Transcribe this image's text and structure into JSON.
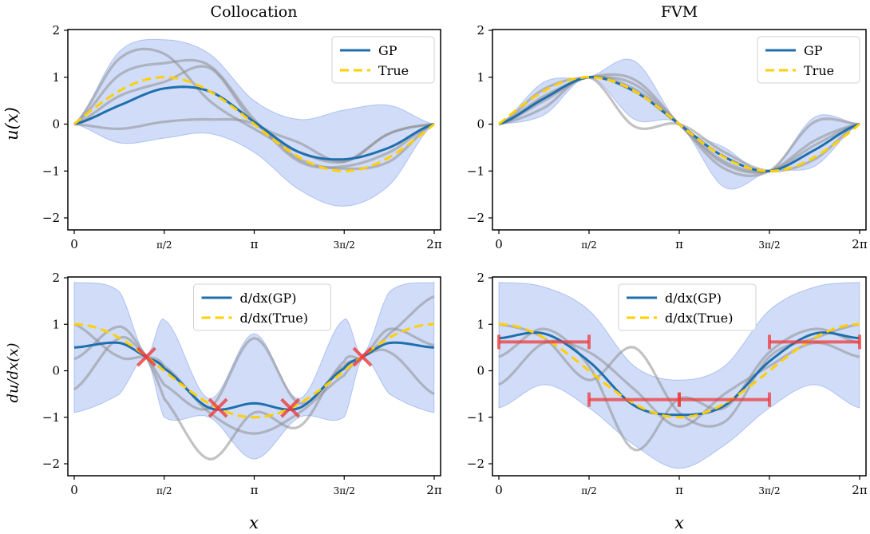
{
  "figure": {
    "col_titles": [
      "Collocation",
      "FVM"
    ],
    "x_label": "x",
    "top_y_label": "u(x)",
    "bottom_y_label": "du/dx(x)",
    "x_tick_labels": [
      "0",
      "π/2",
      "π",
      "3π/2",
      "2π"
    ],
    "y_tick_labels": [
      "2",
      "1",
      "0",
      "−1",
      "−2"
    ],
    "colors": {
      "band": "#6f96ea",
      "gp": "#1f6fad",
      "true": "#ffcf00",
      "sample": "#8f8f8f",
      "marker": "#ee3b3b"
    }
  },
  "chart_data": [
    {
      "type": "line",
      "panel": "collocation-u",
      "title": "Collocation",
      "xlabel": "",
      "ylabel": "u(x)",
      "xlim": [
        0,
        6.2832
      ],
      "ylim": [
        -2.2,
        2
      ],
      "legend": [
        "GP",
        "True"
      ],
      "legend_position": "top-right",
      "true_fn": "sin",
      "series": [
        {
          "name": "GP",
          "x": [
            0,
            0.79,
            1.57,
            2.36,
            3.14,
            3.93,
            4.71,
            5.5,
            6.28
          ],
          "values": [
            0,
            0.4,
            0.76,
            0.7,
            0.05,
            -0.6,
            -0.75,
            -0.5,
            0
          ]
        },
        {
          "name": "upper",
          "x": [
            0,
            0.79,
            1.57,
            2.36,
            3.14,
            3.93,
            4.71,
            5.5,
            6.28
          ],
          "values": [
            0,
            1.55,
            1.8,
            1.5,
            0.5,
            0.1,
            0.3,
            0.4,
            0
          ]
        },
        {
          "name": "lower",
          "x": [
            0,
            0.79,
            1.57,
            2.36,
            3.14,
            3.93,
            4.71,
            5.5,
            6.28
          ],
          "values": [
            0,
            -0.4,
            -0.3,
            -0.2,
            -0.6,
            -1.4,
            -1.75,
            -1.3,
            0
          ]
        },
        {
          "name": "sample",
          "x": [
            0,
            0.79,
            1.57,
            2.36,
            3.14,
            3.93,
            4.71,
            5.5,
            6.28
          ],
          "values": [
            0,
            1.05,
            1.3,
            1.25,
            0.1,
            -0.8,
            -0.9,
            -0.6,
            0
          ]
        },
        {
          "name": "sample",
          "x": [
            0,
            0.79,
            1.57,
            2.36,
            3.14,
            3.93,
            4.71,
            5.5,
            6.28
          ],
          "values": [
            0,
            1.4,
            1.5,
            0.5,
            -0.1,
            -0.6,
            -0.8,
            -0.2,
            0
          ]
        },
        {
          "name": "sample",
          "x": [
            0,
            0.79,
            1.57,
            2.36,
            3.14,
            3.93,
            4.71,
            5.5,
            6.28
          ],
          "values": [
            0,
            -0.1,
            0.05,
            0.1,
            0.0,
            -0.75,
            -0.95,
            -0.8,
            0
          ]
        },
        {
          "name": "sample",
          "x": [
            0,
            0.79,
            1.57,
            2.36,
            3.14,
            3.93,
            4.71,
            5.5,
            6.28
          ],
          "values": [
            0,
            0.6,
            0.9,
            1.2,
            0.05,
            -0.4,
            -0.8,
            -0.2,
            0
          ]
        }
      ],
      "markers": []
    },
    {
      "type": "line",
      "panel": "fvm-u",
      "title": "FVM",
      "xlabel": "",
      "ylabel": "",
      "xlim": [
        0,
        6.2832
      ],
      "ylim": [
        -2.2,
        2
      ],
      "legend": [
        "GP",
        "True"
      ],
      "legend_position": "top-right",
      "true_fn": "sin",
      "series": [
        {
          "name": "GP",
          "x": [
            0,
            0.79,
            1.57,
            2.36,
            3.14,
            3.93,
            4.71,
            5.5,
            6.28
          ],
          "values": [
            0,
            0.55,
            1.0,
            0.7,
            0,
            -0.7,
            -1.0,
            -0.55,
            0
          ]
        },
        {
          "name": "upper",
          "x": [
            0,
            0.79,
            1.57,
            2.36,
            3.14,
            3.93,
            4.71,
            5.5,
            6.28
          ],
          "values": [
            0,
            0.9,
            1.0,
            1.35,
            0,
            -0.5,
            -1.0,
            0.15,
            0
          ]
        },
        {
          "name": "lower",
          "x": [
            0,
            0.79,
            1.57,
            2.36,
            3.14,
            3.93,
            4.71,
            5.5,
            6.28
          ],
          "values": [
            0,
            0.2,
            1.0,
            0.1,
            0,
            -1.35,
            -1.0,
            -0.9,
            0
          ]
        },
        {
          "name": "sample",
          "x": [
            0,
            0.79,
            1.57,
            2.36,
            3.14,
            3.93,
            4.71,
            5.5,
            6.28
          ],
          "values": [
            0,
            0.75,
            1.0,
            0.85,
            0,
            -0.85,
            -1.0,
            -0.35,
            0
          ]
        },
        {
          "name": "sample",
          "x": [
            0,
            0.79,
            1.57,
            2.36,
            3.14,
            3.93,
            4.71,
            5.5,
            6.28
          ],
          "values": [
            0,
            0.35,
            1.0,
            -0.05,
            0,
            -0.6,
            -1.0,
            -0.75,
            0
          ]
        },
        {
          "name": "sample",
          "x": [
            0,
            0.79,
            1.57,
            2.36,
            3.14,
            3.93,
            4.71,
            5.5,
            6.28
          ],
          "values": [
            0,
            0.6,
            1.0,
            0.95,
            0,
            -0.95,
            -1.0,
            0.05,
            0
          ]
        },
        {
          "name": "sample",
          "x": [
            0,
            0.79,
            1.57,
            2.36,
            3.14,
            3.93,
            4.71,
            5.5,
            6.28
          ],
          "values": [
            0,
            0.5,
            1.0,
            0.75,
            0,
            -0.8,
            -1.0,
            -0.45,
            0
          ]
        }
      ],
      "markers": []
    },
    {
      "type": "line",
      "panel": "collocation-du",
      "title": "",
      "xlabel": "x",
      "ylabel": "du/dx(x)",
      "xlim": [
        0,
        6.2832
      ],
      "ylim": [
        -2.2,
        2
      ],
      "legend": [
        "d/dx(GP)",
        "d/dx(True)"
      ],
      "legend_position": "top-center",
      "true_fn": "cos",
      "series": [
        {
          "name": "d/dx(GP)",
          "x": [
            0,
            0.79,
            1.26,
            1.57,
            2.36,
            3.14,
            3.93,
            4.71,
            5.03,
            5.5,
            6.28
          ],
          "values": [
            0.5,
            0.6,
            0.3,
            0.05,
            -0.8,
            -0.7,
            -0.8,
            0.05,
            0.3,
            0.6,
            0.5
          ]
        },
        {
          "name": "upper",
          "x": [
            0,
            0.79,
            1.26,
            1.57,
            2.36,
            3.14,
            3.93,
            4.71,
            5.03,
            5.5,
            6.28
          ],
          "values": [
            1.9,
            1.7,
            0.35,
            1.1,
            -0.6,
            0.8,
            -0.6,
            1.1,
            0.35,
            1.7,
            1.9
          ]
        },
        {
          "name": "lower",
          "x": [
            0,
            0.79,
            1.26,
            1.57,
            2.36,
            3.14,
            3.93,
            4.71,
            5.03,
            5.5,
            6.28
          ],
          "values": [
            -0.9,
            -0.5,
            0.25,
            -1.0,
            -1.0,
            -1.9,
            -1.0,
            -1.0,
            0.25,
            -0.5,
            -0.9
          ]
        },
        {
          "name": "sample",
          "x": [
            0,
            0.79,
            1.26,
            1.57,
            2.36,
            3.14,
            3.93,
            4.71,
            5.03,
            5.5,
            6.28
          ],
          "values": [
            0.25,
            0.95,
            0.3,
            -0.6,
            -1.9,
            -0.9,
            -1.2,
            0.2,
            0.3,
            0.9,
            0.55
          ]
        },
        {
          "name": "sample",
          "x": [
            0,
            0.79,
            1.26,
            1.57,
            2.36,
            3.14,
            3.93,
            4.71,
            5.03,
            5.5,
            6.28
          ],
          "values": [
            -0.4,
            0.7,
            0.3,
            -0.3,
            -0.8,
            0.7,
            -0.7,
            0.1,
            0.3,
            0.8,
            1.6
          ]
        },
        {
          "name": "sample",
          "x": [
            0,
            0.79,
            1.26,
            1.57,
            2.36,
            3.14,
            3.93,
            4.71,
            5.03,
            5.5,
            6.28
          ],
          "values": [
            1.0,
            0.3,
            0.3,
            0.1,
            -0.9,
            -1.35,
            -0.9,
            -0.1,
            0.3,
            0.4,
            -0.5
          ]
        }
      ],
      "markers": [
        {
          "kind": "cross",
          "x": 1.26,
          "y": 0.3
        },
        {
          "kind": "cross",
          "x": 2.51,
          "y": -0.8
        },
        {
          "kind": "cross",
          "x": 3.77,
          "y": -0.8
        },
        {
          "kind": "cross",
          "x": 5.03,
          "y": 0.3
        }
      ]
    },
    {
      "type": "line",
      "panel": "fvm-du",
      "title": "",
      "xlabel": "x",
      "ylabel": "",
      "xlim": [
        0,
        6.2832
      ],
      "ylim": [
        -2.2,
        2
      ],
      "legend": [
        "d/dx(GP)",
        "d/dx(True)"
      ],
      "legend_position": "top-center",
      "true_fn": "cos",
      "series": [
        {
          "name": "d/dx(GP)",
          "x": [
            0,
            0.79,
            1.57,
            2.36,
            3.14,
            3.93,
            4.71,
            5.5,
            6.28
          ],
          "values": [
            0.7,
            0.8,
            0.2,
            -0.75,
            -0.95,
            -0.75,
            0.2,
            0.8,
            0.7
          ]
        },
        {
          "name": "upper",
          "x": [
            0,
            0.79,
            1.57,
            2.36,
            3.14,
            3.93,
            4.71,
            5.5,
            6.28
          ],
          "values": [
            1.9,
            1.8,
            1.3,
            0.1,
            -0.2,
            0.1,
            1.3,
            1.8,
            1.9
          ]
        },
        {
          "name": "lower",
          "x": [
            0,
            0.79,
            1.57,
            2.36,
            3.14,
            3.93,
            4.71,
            5.5,
            6.28
          ],
          "values": [
            -0.8,
            -0.3,
            -0.8,
            -1.6,
            -2.1,
            -1.6,
            -0.8,
            -0.3,
            -0.8
          ]
        },
        {
          "name": "sample",
          "x": [
            0,
            0.79,
            1.57,
            2.36,
            3.14,
            3.93,
            4.71,
            5.5,
            6.28
          ],
          "values": [
            0.3,
            0.9,
            0.1,
            -1.7,
            -0.6,
            -0.8,
            0.4,
            0.9,
            0.6
          ]
        },
        {
          "name": "sample",
          "x": [
            0,
            0.79,
            1.57,
            2.36,
            3.14,
            3.93,
            4.71,
            5.5,
            6.28
          ],
          "values": [
            -0.3,
            0.6,
            0.4,
            -0.4,
            -1.2,
            -0.5,
            0.1,
            0.6,
            0.3
          ]
        },
        {
          "name": "sample",
          "x": [
            0,
            0.79,
            1.57,
            2.36,
            3.14,
            3.93,
            4.71,
            5.5,
            6.28
          ],
          "values": [
            1.0,
            0.7,
            -0.2,
            0.5,
            -0.9,
            -1.1,
            0.3,
            0.7,
            1.0
          ]
        }
      ],
      "markers": [
        {
          "kind": "interval",
          "x0": 0,
          "x1": 1.5708,
          "y": 0.62
        },
        {
          "kind": "interval",
          "x0": 1.5708,
          "x1": 3.1416,
          "y": -0.62
        },
        {
          "kind": "interval",
          "x0": 3.1416,
          "x1": 4.7124,
          "y": -0.62
        },
        {
          "kind": "interval",
          "x0": 4.7124,
          "x1": 6.2832,
          "y": 0.62
        }
      ]
    }
  ]
}
